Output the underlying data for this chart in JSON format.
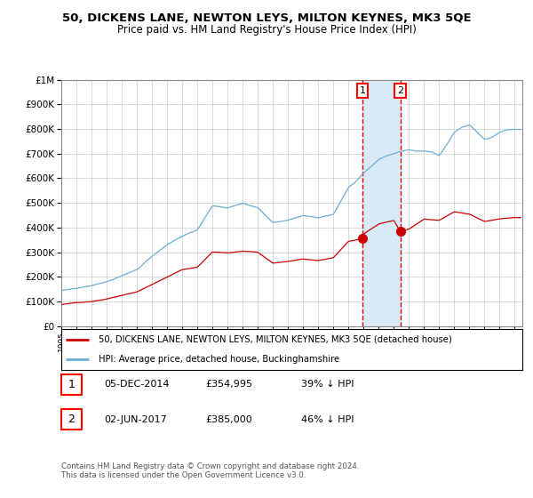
{
  "title": "50, DICKENS LANE, NEWTON LEYS, MILTON KEYNES, MK3 5QE",
  "subtitle": "Price paid vs. HM Land Registry's House Price Index (HPI)",
  "legend_line1": "50, DICKENS LANE, NEWTON LEYS, MILTON KEYNES, MK3 5QE (detached house)",
  "legend_line2": "HPI: Average price, detached house, Buckinghamshire",
  "transaction1_date": "05-DEC-2014",
  "transaction1_price": "£354,995",
  "transaction1_hpi": "39% ↓ HPI",
  "transaction2_date": "02-JUN-2017",
  "transaction2_price": "£385,000",
  "transaction2_hpi": "46% ↓ HPI",
  "footer": "Contains HM Land Registry data © Crown copyright and database right 2024.\nThis data is licensed under the Open Government Licence v3.0.",
  "hpi_color": "#6baed6",
  "price_color": "#cc0000",
  "marker_color": "#cc0000",
  "vline_color": "#dd0000",
  "shade_color": "#d8eaf7",
  "grid_color": "#cccccc",
  "bg_color": "#ffffff",
  "ylim": [
    0,
    1000000
  ],
  "xlim_start": 1995.0,
  "xlim_end": 2025.5,
  "transaction1_x": 2014.92,
  "transaction1_y": 354995,
  "transaction2_x": 2017.42,
  "transaction2_y": 385000,
  "hpi_anchors_x": [
    1995,
    1996,
    1997,
    1998,
    1999,
    2000,
    2001,
    2002,
    2003,
    2004,
    2005,
    2006,
    2007,
    2008,
    2009,
    2010,
    2011,
    2012,
    2013,
    2014,
    2014.5,
    2015,
    2015.5,
    2016,
    2016.5,
    2017,
    2017.5,
    2018,
    2018.5,
    2019,
    2019.5,
    2020,
    2020.5,
    2021,
    2021.5,
    2022,
    2022.5,
    2023,
    2023.5,
    2024,
    2024.5,
    2025
  ],
  "hpi_anchors_y": [
    145000,
    152000,
    162000,
    180000,
    205000,
    230000,
    285000,
    330000,
    365000,
    390000,
    490000,
    480000,
    500000,
    480000,
    420000,
    430000,
    450000,
    440000,
    455000,
    565000,
    590000,
    625000,
    650000,
    680000,
    695000,
    705000,
    715000,
    720000,
    715000,
    715000,
    710000,
    695000,
    740000,
    790000,
    810000,
    820000,
    790000,
    760000,
    770000,
    790000,
    800000,
    800000
  ],
  "price_anchors_x": [
    1995,
    1996,
    1997,
    1998,
    1999,
    2000,
    2001,
    2002,
    2003,
    2004,
    2005,
    2006,
    2007,
    2008,
    2009,
    2010,
    2011,
    2012,
    2013,
    2014,
    2014.92,
    2015,
    2016,
    2017,
    2017.42,
    2018,
    2019,
    2020,
    2021,
    2022,
    2023,
    2024,
    2025
  ],
  "price_anchors_y": [
    88000,
    95000,
    100000,
    110000,
    125000,
    140000,
    170000,
    200000,
    230000,
    240000,
    302000,
    298000,
    305000,
    300000,
    256000,
    263000,
    273000,
    267000,
    278000,
    345000,
    354995,
    375000,
    415000,
    430000,
    385000,
    395000,
    435000,
    430000,
    465000,
    455000,
    425000,
    435000,
    440000
  ]
}
